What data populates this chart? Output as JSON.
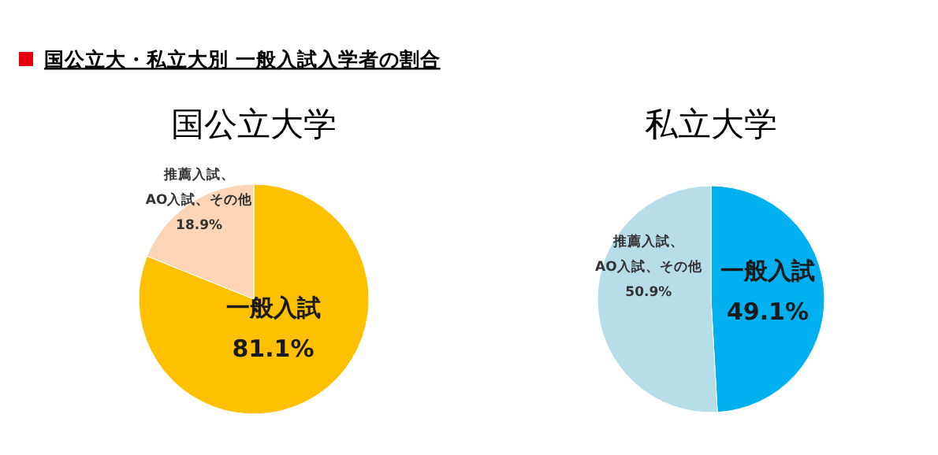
{
  "chart_data": [
    {
      "type": "pie",
      "title": "国公立大学",
      "annotations": [
        "国公立大・私立大別 一般入試入学者の割合"
      ],
      "categories": [
        "一般入試",
        "推薦入試、AO入試、その他"
      ],
      "values": [
        81.1,
        18.9
      ],
      "colors": [
        "#ffc000",
        "#fbd5b5"
      ],
      "value_labels": [
        "81.1%",
        "18.9%"
      ],
      "legend": false
    },
    {
      "type": "pie",
      "title": "私立大学",
      "categories": [
        "一般入試",
        "推薦入試、AO入試、その他"
      ],
      "values": [
        49.1,
        50.9
      ],
      "colors": [
        "#00b0f0",
        "#b7dde8"
      ],
      "value_labels": [
        "49.1%",
        "50.9%"
      ],
      "legend": false
    }
  ]
}
